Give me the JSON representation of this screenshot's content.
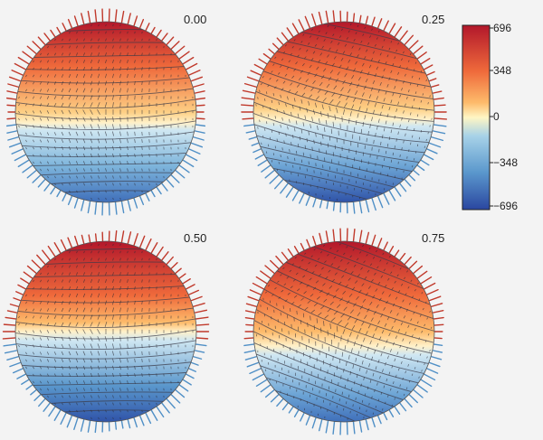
{
  "panels": [
    {
      "phase_label": "0.00",
      "tilt_deg": 0
    },
    {
      "phase_label": "0.25",
      "tilt_deg": 14
    },
    {
      "phase_label": "0.50",
      "tilt_deg": 0
    },
    {
      "phase_label": "0.75",
      "tilt_deg": 22
    }
  ],
  "colorbar": {
    "ticks": [
      "696",
      "348",
      "0",
      "−348",
      "−696"
    ],
    "min": -696,
    "max": 696,
    "colors": {
      "max": "#b2172b",
      "high": "#ef6a3b",
      "mid_high": "#fdbb6b",
      "zero": "#fff6c4",
      "mid_low": "#a7d2e8",
      "low": "#5a97cc",
      "min": "#2a46a0"
    }
  }
}
